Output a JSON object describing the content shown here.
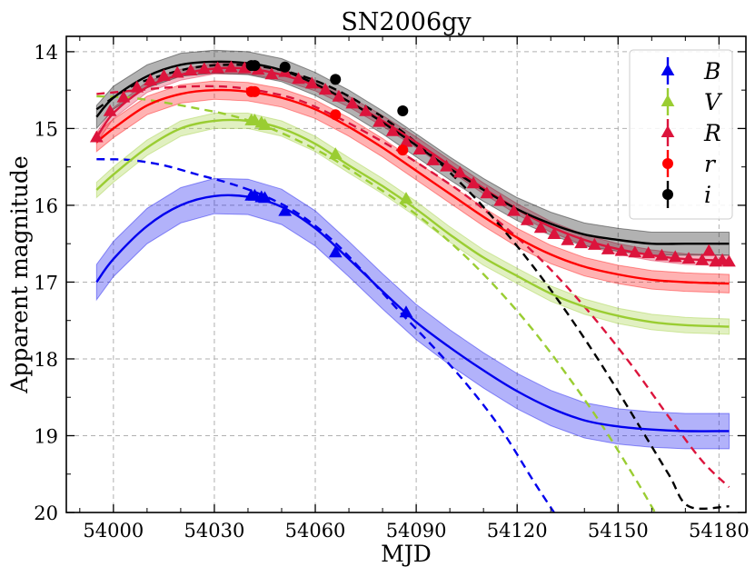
{
  "chart_data": {
    "type": "scatter",
    "title": "SN2006gy",
    "xlabel": "MJD",
    "ylabel": "Apparent magnitude",
    "xlim": [
      53986,
      54188
    ],
    "ylim": [
      20,
      13.8
    ],
    "y_inverted": true,
    "grid": true,
    "legend_position": "top-right",
    "xticks": [
      54000,
      54030,
      54060,
      54090,
      54120,
      54150,
      54180
    ],
    "xtick_labels": [
      "54000",
      "54030",
      "54060",
      "54090",
      "54120",
      "54150",
      "54180"
    ],
    "yticks": [
      14,
      15,
      16,
      17,
      18,
      19,
      20
    ],
    "ytick_labels": [
      "14",
      "15",
      "16",
      "17",
      "18",
      "19",
      "20"
    ],
    "series": [
      {
        "name": "B",
        "label": "B",
        "color": "#0000ee",
        "marker": "triangle",
        "points": [
          [
            54041,
            15.88
          ],
          [
            54042,
            15.88
          ],
          [
            54044,
            15.9
          ],
          [
            54045,
            15.91
          ],
          [
            54051,
            16.08
          ],
          [
            54066,
            16.62
          ],
          [
            54087,
            17.4
          ]
        ],
        "fit": [
          [
            53995,
            17.0
          ],
          [
            54000,
            16.7
          ],
          [
            54010,
            16.27
          ],
          [
            54020,
            16.0
          ],
          [
            54030,
            15.88
          ],
          [
            54040,
            15.89
          ],
          [
            54050,
            16.02
          ],
          [
            54060,
            16.3
          ],
          [
            54070,
            16.7
          ],
          [
            54080,
            17.12
          ],
          [
            54090,
            17.52
          ],
          [
            54100,
            17.85
          ],
          [
            54110,
            18.15
          ],
          [
            54120,
            18.42
          ],
          [
            54130,
            18.64
          ],
          [
            54140,
            18.8
          ],
          [
            54150,
            18.88
          ],
          [
            54160,
            18.92
          ],
          [
            54170,
            18.94
          ],
          [
            54183,
            18.94
          ]
        ],
        "band": 0.23,
        "model": [
          [
            53995,
            15.4
          ],
          [
            54005,
            15.41
          ],
          [
            54015,
            15.48
          ],
          [
            54025,
            15.6
          ],
          [
            54035,
            15.72
          ],
          [
            54045,
            15.88
          ],
          [
            54055,
            16.11
          ],
          [
            54065,
            16.45
          ],
          [
            54075,
            16.9
          ],
          [
            54085,
            17.38
          ],
          [
            54095,
            17.84
          ],
          [
            54105,
            18.33
          ],
          [
            54115,
            18.9
          ],
          [
            54125,
            19.6
          ],
          [
            54131,
            20.0
          ]
        ]
      },
      {
        "name": "V",
        "label": "V",
        "color": "#9acd32",
        "marker": "triangle",
        "points": [
          [
            54041,
            14.9
          ],
          [
            54042,
            14.9
          ],
          [
            54044,
            14.93
          ],
          [
            54045,
            14.96
          ],
          [
            54066,
            15.34
          ],
          [
            54087,
            15.92
          ]
        ],
        "fit": [
          [
            53995,
            15.8
          ],
          [
            54000,
            15.6
          ],
          [
            54010,
            15.25
          ],
          [
            54020,
            15.0
          ],
          [
            54030,
            14.9
          ],
          [
            54040,
            14.9
          ],
          [
            54050,
            15.0
          ],
          [
            54060,
            15.2
          ],
          [
            54070,
            15.48
          ],
          [
            54080,
            15.75
          ],
          [
            54090,
            16.05
          ],
          [
            54100,
            16.38
          ],
          [
            54110,
            16.68
          ],
          [
            54120,
            16.92
          ],
          [
            54130,
            17.15
          ],
          [
            54140,
            17.32
          ],
          [
            54150,
            17.44
          ],
          [
            54160,
            17.52
          ],
          [
            54170,
            17.56
          ],
          [
            54183,
            17.58
          ]
        ],
        "band": 0.1,
        "model": [
          [
            53995,
            14.58
          ],
          [
            54005,
            14.6
          ],
          [
            54015,
            14.66
          ],
          [
            54025,
            14.74
          ],
          [
            54035,
            14.83
          ],
          [
            54045,
            14.97
          ],
          [
            54055,
            15.16
          ],
          [
            54065,
            15.39
          ],
          [
            54075,
            15.67
          ],
          [
            54085,
            15.96
          ],
          [
            54095,
            16.29
          ],
          [
            54105,
            16.68
          ],
          [
            54115,
            17.13
          ],
          [
            54125,
            17.64
          ],
          [
            54135,
            18.22
          ],
          [
            54145,
            18.85
          ],
          [
            54155,
            19.55
          ],
          [
            54161,
            20.0
          ]
        ]
      },
      {
        "name": "R",
        "label": "R",
        "color": "#dc143c",
        "marker": "triangle",
        "points": [
          [
            53995,
            15.12
          ],
          [
            53999,
            14.78
          ],
          [
            54003,
            14.6
          ],
          [
            54007,
            14.47
          ],
          [
            54011,
            14.38
          ],
          [
            54015,
            14.32
          ],
          [
            54019,
            14.28
          ],
          [
            54023,
            14.25
          ],
          [
            54027,
            14.23
          ],
          [
            54031,
            14.22
          ],
          [
            54035,
            14.21
          ],
          [
            54039,
            14.22
          ],
          [
            54043,
            14.24
          ],
          [
            54047,
            14.3
          ],
          [
            54051,
            14.27
          ],
          [
            54055,
            14.36
          ],
          [
            54059,
            14.42
          ],
          [
            54063,
            14.5
          ],
          [
            54067,
            14.59
          ],
          [
            54071,
            14.68
          ],
          [
            54075,
            14.78
          ],
          [
            54079,
            14.92
          ],
          [
            54083,
            15.04
          ],
          [
            54087,
            15.18
          ],
          [
            54091,
            15.28
          ],
          [
            54095,
            15.42
          ],
          [
            54099,
            15.5
          ],
          [
            54103,
            15.58
          ],
          [
            54107,
            15.72
          ],
          [
            54111,
            15.85
          ],
          [
            54115,
            15.95
          ],
          [
            54119,
            16.08
          ],
          [
            54123,
            16.2
          ],
          [
            54127,
            16.3
          ],
          [
            54131,
            16.38
          ],
          [
            54135,
            16.46
          ],
          [
            54139,
            16.5
          ],
          [
            54143,
            16.52
          ],
          [
            54147,
            16.58
          ],
          [
            54151,
            16.6
          ],
          [
            54155,
            16.62
          ],
          [
            54159,
            16.63
          ],
          [
            54163,
            16.66
          ],
          [
            54167,
            16.68
          ],
          [
            54171,
            16.7
          ],
          [
            54175,
            16.72
          ],
          [
            54177,
            16.6
          ],
          [
            54179,
            16.74
          ],
          [
            54181,
            16.72
          ],
          [
            54183,
            16.74
          ]
        ],
        "fit": [
          [
            53995,
            15.12
          ],
          [
            54000,
            14.8
          ],
          [
            54010,
            14.46
          ],
          [
            54020,
            14.3
          ],
          [
            54030,
            14.22
          ],
          [
            54040,
            14.22
          ],
          [
            54050,
            14.3
          ],
          [
            54060,
            14.44
          ],
          [
            54070,
            14.65
          ],
          [
            54080,
            14.9
          ],
          [
            54090,
            15.18
          ],
          [
            54100,
            15.48
          ],
          [
            54110,
            15.78
          ],
          [
            54120,
            16.05
          ],
          [
            54130,
            16.28
          ],
          [
            54140,
            16.45
          ],
          [
            54150,
            16.57
          ],
          [
            54160,
            16.65
          ],
          [
            54170,
            16.7
          ],
          [
            54183,
            16.72
          ]
        ],
        "band": 0.07,
        "model": [
          [
            53995,
            14.55
          ],
          [
            54005,
            14.51
          ],
          [
            54015,
            14.47
          ],
          [
            54025,
            14.45
          ],
          [
            54035,
            14.46
          ],
          [
            54045,
            14.52
          ],
          [
            54055,
            14.63
          ],
          [
            54065,
            14.82
          ],
          [
            54075,
            15.05
          ],
          [
            54085,
            15.3
          ],
          [
            54095,
            15.58
          ],
          [
            54105,
            15.88
          ],
          [
            54115,
            16.23
          ],
          [
            54125,
            16.62
          ],
          [
            54135,
            17.07
          ],
          [
            54145,
            17.58
          ],
          [
            54155,
            18.14
          ],
          [
            54165,
            18.75
          ],
          [
            54175,
            19.33
          ],
          [
            54183,
            19.67
          ]
        ]
      },
      {
        "name": "r",
        "label": "r",
        "color": "#ff0000",
        "marker": "circle",
        "points": [
          [
            54041,
            14.52
          ],
          [
            54042,
            14.52
          ],
          [
            54066,
            14.82
          ],
          [
            54086,
            15.28
          ]
        ],
        "fit": [
          [
            53995,
            15.18
          ],
          [
            54000,
            15.0
          ],
          [
            54010,
            14.7
          ],
          [
            54020,
            14.55
          ],
          [
            54030,
            14.5
          ],
          [
            54040,
            14.52
          ],
          [
            54050,
            14.6
          ],
          [
            54060,
            14.75
          ],
          [
            54070,
            14.98
          ],
          [
            54080,
            15.25
          ],
          [
            54090,
            15.55
          ],
          [
            54100,
            15.85
          ],
          [
            54110,
            16.15
          ],
          [
            54120,
            16.42
          ],
          [
            54130,
            16.64
          ],
          [
            54140,
            16.8
          ],
          [
            54150,
            16.9
          ],
          [
            54160,
            16.97
          ],
          [
            54170,
            17.0
          ],
          [
            54183,
            17.02
          ]
        ],
        "band": 0.12,
        "model": null
      },
      {
        "name": "i",
        "label": "i",
        "color": "#000000",
        "marker": "circle",
        "points": [
          [
            54041,
            14.18
          ],
          [
            54042,
            14.18
          ],
          [
            54051,
            14.2
          ],
          [
            54066,
            14.36
          ],
          [
            54086,
            14.77
          ]
        ],
        "fit": [
          [
            53995,
            14.85
          ],
          [
            54000,
            14.6
          ],
          [
            54010,
            14.32
          ],
          [
            54020,
            14.17
          ],
          [
            54030,
            14.13
          ],
          [
            54040,
            14.15
          ],
          [
            54050,
            14.24
          ],
          [
            54060,
            14.42
          ],
          [
            54070,
            14.65
          ],
          [
            54080,
            14.92
          ],
          [
            54090,
            15.22
          ],
          [
            54100,
            15.52
          ],
          [
            54110,
            15.8
          ],
          [
            54120,
            16.05
          ],
          [
            54130,
            16.24
          ],
          [
            54140,
            16.38
          ],
          [
            54150,
            16.45
          ],
          [
            54160,
            16.5
          ],
          [
            54170,
            16.5
          ],
          [
            54183,
            16.5
          ]
        ],
        "band": 0.15,
        "model": [
          [
            53995,
            14.75
          ],
          [
            54005,
            14.46
          ],
          [
            54015,
            14.3
          ],
          [
            54025,
            14.2
          ],
          [
            54035,
            14.17
          ],
          [
            54045,
            14.2
          ],
          [
            54055,
            14.3
          ],
          [
            54065,
            14.47
          ],
          [
            54075,
            14.71
          ],
          [
            54085,
            15.01
          ],
          [
            54095,
            15.37
          ],
          [
            54105,
            15.79
          ],
          [
            54115,
            16.27
          ],
          [
            54125,
            16.81
          ],
          [
            54135,
            17.41
          ],
          [
            54145,
            18.07
          ],
          [
            54155,
            18.78
          ],
          [
            54165,
            19.5
          ],
          [
            54171,
            19.92
          ],
          [
            54183,
            19.92
          ]
        ]
      }
    ]
  }
}
